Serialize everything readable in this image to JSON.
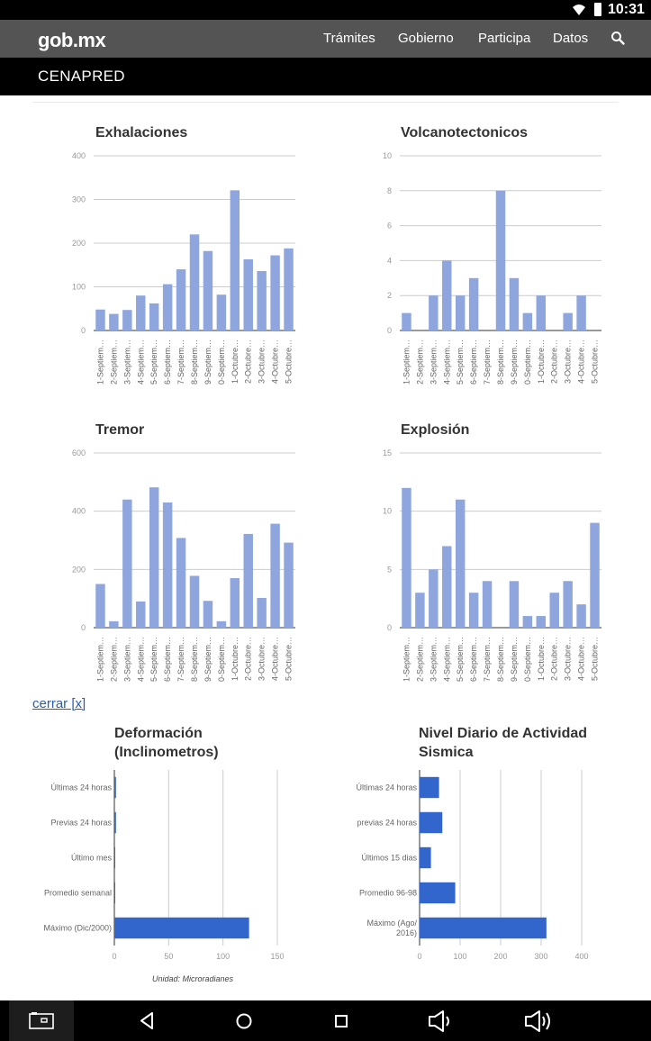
{
  "status_bar": {
    "time": "10:31"
  },
  "navbar": {
    "logo": "gob.mx",
    "links": [
      "Trámites",
      "Gobierno",
      "Participa",
      "Datos"
    ]
  },
  "subheader": {
    "title": "CENAPRED"
  },
  "close_link": "cerrar [x]",
  "chart_data": [
    {
      "type": "bar",
      "title": "Exhalaciones",
      "categories": [
        "1-Septiem…",
        "2-Septiem…",
        "3-Septiem…",
        "4-Septiem…",
        "5-Septiem…",
        "6-Septiem…",
        "7-Septiem…",
        "8-Septiem…",
        "9-Septiem…",
        "0-Septiem…",
        "1-Octubre…",
        "2-Octubre…",
        "3-Octubre…",
        "4-Octubre…",
        "5-Octubre…"
      ],
      "values": [
        48,
        38,
        47,
        80,
        62,
        106,
        140,
        220,
        182,
        82,
        321,
        163,
        136,
        172,
        188
      ],
      "ylim": [
        0,
        400
      ],
      "yticks": [
        "0",
        "100",
        "200",
        "300",
        "400"
      ],
      "xlabel": "",
      "ylabel": ""
    },
    {
      "type": "bar",
      "title": "Volcanotectonicos",
      "categories": [
        "1-Septiem…",
        "2-Septiem…",
        "3-Septiem…",
        "4-Septiem…",
        "5-Septiem…",
        "6-Septiem…",
        "7-Septiem…",
        "8-Septiem…",
        "9-Septiem…",
        "0-Septiem…",
        "1-Octubre…",
        "2-Octubre…",
        "3-Octubre…",
        "4-Octubre…",
        "5-Octubre…"
      ],
      "values": [
        1,
        0,
        2,
        4,
        2,
        3,
        0,
        8,
        3,
        1,
        2,
        0,
        1,
        2,
        0
      ],
      "ylim": [
        0,
        10
      ],
      "yticks": [
        "0",
        "2",
        "4",
        "6",
        "8",
        "10"
      ],
      "xlabel": "",
      "ylabel": ""
    },
    {
      "type": "bar",
      "title": "Tremor",
      "categories": [
        "1-Septiem…",
        "2-Septiem…",
        "3-Septiem…",
        "4-Septiem…",
        "5-Septiem…",
        "6-Septiem…",
        "7-Septiem…",
        "8-Septiem…",
        "9-Septiem…",
        "0-Septiem…",
        "1-Octubre…",
        "2-Octubre…",
        "3-Octubre…",
        "4-Octubre…",
        "5-Octubre…"
      ],
      "values": [
        150,
        22,
        440,
        90,
        482,
        430,
        308,
        178,
        92,
        22,
        170,
        322,
        102,
        357,
        292
      ],
      "ylim": [
        0,
        600
      ],
      "yticks": [
        "0",
        "200",
        "400",
        "600"
      ],
      "xlabel": "",
      "ylabel": ""
    },
    {
      "type": "bar",
      "title": "Explosión",
      "categories": [
        "1-Septiem…",
        "2-Septiem…",
        "3-Septiem…",
        "4-Septiem…",
        "5-Septiem…",
        "6-Septiem…",
        "7-Septiem…",
        "8-Septiem…",
        "9-Septiem…",
        "0-Septiem…",
        "1-Octubre…",
        "2-Octubre…",
        "3-Octubre…",
        "4-Octubre…",
        "5-Octubre…"
      ],
      "values": [
        12,
        3,
        5,
        7,
        11,
        3,
        4,
        0,
        4,
        1,
        1,
        3,
        4,
        2,
        9
      ],
      "ylim": [
        0,
        15
      ],
      "yticks": [
        "0",
        "5",
        "10",
        "15"
      ],
      "xlabel": "",
      "ylabel": ""
    },
    {
      "type": "bar",
      "orientation": "horizontal",
      "title": "Deformación (Inclinometros)",
      "title_lines": [
        "Deformación",
        "(Inclinometros)"
      ],
      "categories": [
        "Últimas 24 horas",
        "Previas 24 horas",
        "Último mes",
        "Promedio semanal",
        "Máximo (Dic/2000)"
      ],
      "category_lines": [
        [
          "Últimas 24 horas"
        ],
        [
          "Previas 24 horas"
        ],
        [
          "Último mes"
        ],
        [
          "Promedio semanal"
        ],
        [
          "Máximo (Dic/2000)"
        ]
      ],
      "values": [
        1.5,
        1.5,
        0.8,
        0.8,
        124
      ],
      "xlim": [
        0,
        150
      ],
      "xticks": [
        "0",
        "50",
        "100",
        "150"
      ],
      "xlabel": "Unidad: Microradianes"
    },
    {
      "type": "bar",
      "orientation": "horizontal",
      "title": "Nivel Diario de Actividad Sismica",
      "title_lines": [
        "Nivel Diario de Actividad",
        "Sismica"
      ],
      "categories": [
        "Últimas 24 horas",
        "previas 24 horas",
        "Últimos 15 dias",
        "Promedio 96-98",
        "Máximo (Ago/2016)"
      ],
      "category_lines": [
        [
          "Últimas 24 horas"
        ],
        [
          "previas 24 horas"
        ],
        [
          "Últimos 15 dias"
        ],
        [
          "Promedio 96-98"
        ],
        [
          "Máximo (Ago/",
          "2016)"
        ]
      ],
      "values": [
        48,
        56,
        28,
        88,
        313
      ],
      "xlim": [
        0,
        400
      ],
      "xticks": [
        "0",
        "100",
        "200",
        "300",
        "400"
      ],
      "xlabel": ""
    }
  ]
}
